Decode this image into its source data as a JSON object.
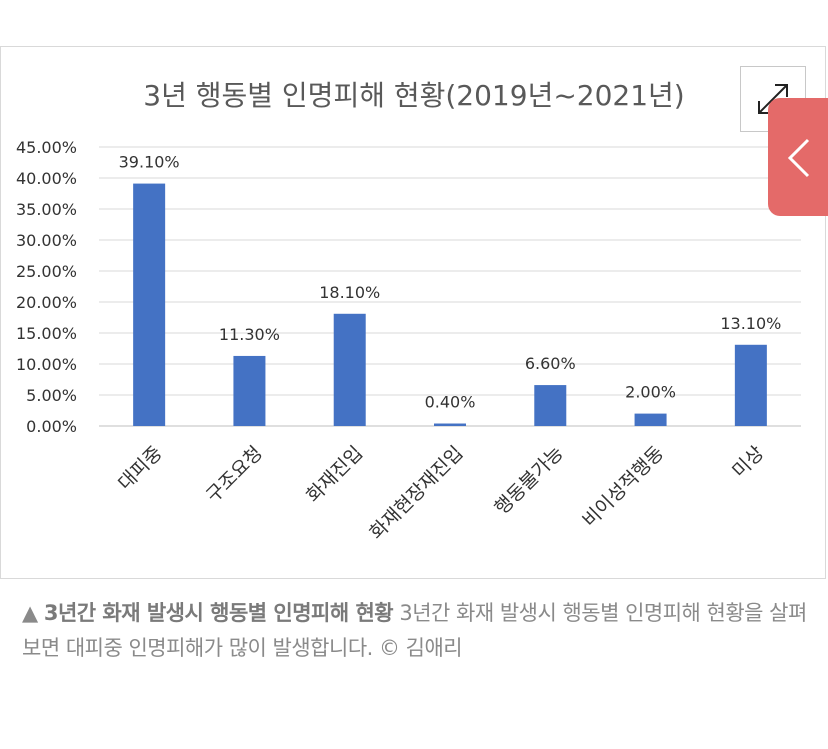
{
  "chart_data": {
    "type": "bar",
    "title": "3년 행동별 인명피해 현황(2019년~2021년)",
    "categories": [
      "대피중",
      "구조요청",
      "화재진입",
      "화재현장재진입",
      "행동불가능",
      "비이성적행동",
      "미상"
    ],
    "values": [
      39.1,
      11.3,
      18.1,
      0.4,
      6.6,
      2.0,
      13.1
    ],
    "data_labels": [
      "39.10%",
      "11.30%",
      "18.10%",
      "0.40%",
      "6.60%",
      "2.00%",
      "13.10%"
    ],
    "y_ticks": [
      "0.00%",
      "5.00%",
      "10.00%",
      "15.00%",
      "20.00%",
      "25.00%",
      "30.00%",
      "35.00%",
      "40.00%",
      "45.00%"
    ],
    "ylim": [
      0,
      45
    ],
    "grid": true,
    "bar_color": "#4472c4"
  },
  "caption": {
    "marker": "▲",
    "bold_text": "3년간 화재 발생시 행동별 인명피해 현황",
    "text": "3년간 화재 발생시 행동별 인명피해 현황을 살펴보면 대피중 인명피해가 많이 발생합니다. © 김애리"
  },
  "colors": {
    "accent_tab": "#e46a69",
    "grid": "#d9d9d9"
  },
  "icons": {
    "expand": "expand-arrows-icon",
    "side_tab": "chevron-left-icon"
  }
}
